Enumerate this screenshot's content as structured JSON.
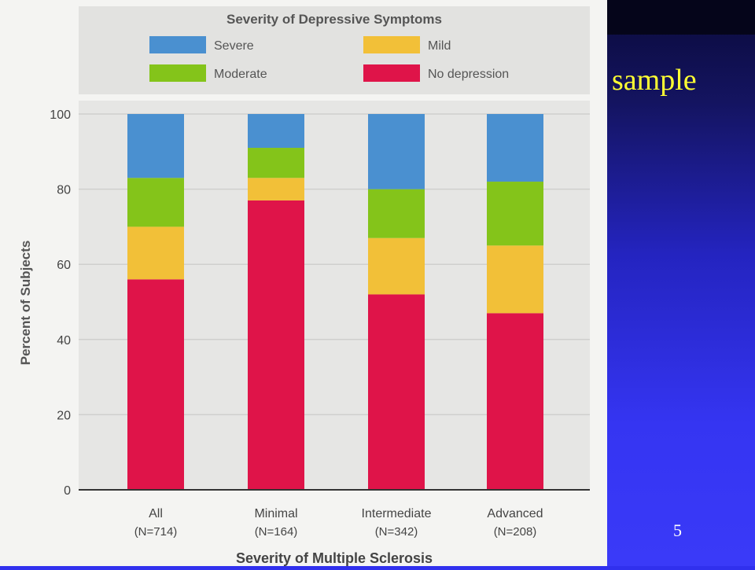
{
  "slide": {
    "word": "sample",
    "page_number": "5"
  },
  "colors": {
    "severe": "#4a90d0",
    "mild": "#f2c038",
    "moderate": "#84c41a",
    "no_depression": "#df1449"
  },
  "chart_data": {
    "type": "bar",
    "stacked": true,
    "legend_title": "Severity of Depressive Symptoms",
    "legend_placement": "top",
    "xlabel": "Severity of Multiple Sclerosis",
    "ylabel": "Percent of Subjects",
    "ylim": [
      0,
      100
    ],
    "yticks": [
      0,
      20,
      40,
      60,
      80,
      100
    ],
    "grid": true,
    "categories": [
      {
        "name": "All",
        "n": "(N=714)"
      },
      {
        "name": "Minimal",
        "n": "(N=164)"
      },
      {
        "name": "Intermediate",
        "n": "(N=342)"
      },
      {
        "name": "Advanced",
        "n": "(N=208)"
      }
    ],
    "series": [
      {
        "name": "No depression",
        "color": "#df1449",
        "values": [
          56,
          77,
          52,
          47
        ]
      },
      {
        "name": "Mild",
        "color": "#f2c038",
        "values": [
          14,
          6,
          15,
          18
        ]
      },
      {
        "name": "Moderate",
        "color": "#84c41a",
        "values": [
          13,
          8,
          13,
          17
        ]
      },
      {
        "name": "Severe",
        "color": "#4a90d0",
        "values": [
          17,
          9,
          20,
          18
        ]
      }
    ],
    "legend": [
      {
        "label": "Severe",
        "color": "#4a90d0"
      },
      {
        "label": "Mild",
        "color": "#f2c038"
      },
      {
        "label": "Moderate",
        "color": "#84c41a"
      },
      {
        "label": "No depression",
        "color": "#df1449"
      }
    ]
  }
}
